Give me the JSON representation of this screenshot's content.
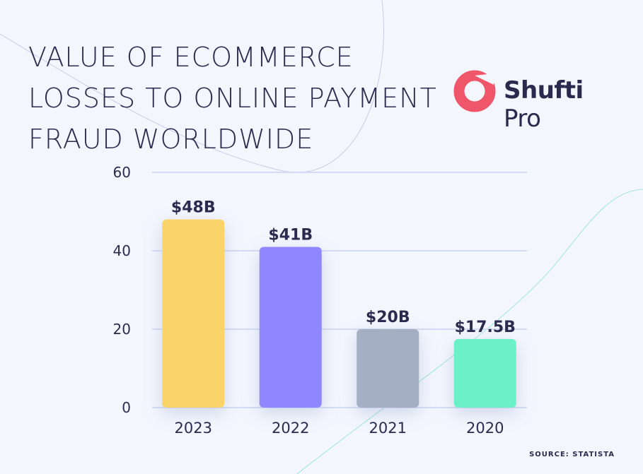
{
  "title": "VALUE OF ECOMMERCE\nLOSSES TO ONLINE PAYMENT\nFRAUD WORLDWIDE",
  "logo": {
    "text_bold": "Shufti",
    "text_regular": "Pro",
    "icon": "shufti-pro-ring-logo",
    "color": "#f0566a"
  },
  "source": "SOURCE: STATISTA",
  "chart_data": {
    "type": "bar",
    "categories": [
      "2023",
      "2022",
      "2021",
      "2020"
    ],
    "values": [
      48,
      41,
      20,
      17.5
    ],
    "data_labels": [
      "$48B",
      "$41B",
      "$20B",
      "$17.5B"
    ],
    "colors": [
      "#fad467",
      "#8f87ff",
      "#a5afc3",
      "#6cf0c8"
    ],
    "ylim": [
      0,
      60
    ],
    "yticks": [
      0,
      20,
      40,
      60
    ],
    "grid": true,
    "xlabel": "",
    "ylabel": ""
  }
}
